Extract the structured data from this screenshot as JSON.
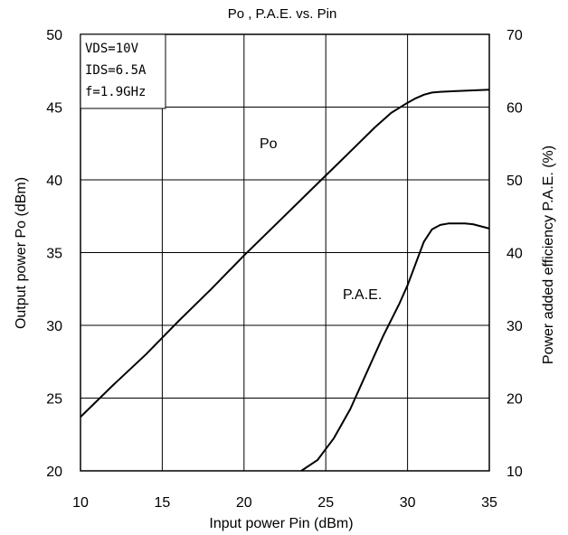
{
  "chart_data": {
    "type": "line",
    "title": "Po , P.A.E.  vs. Pin",
    "xlabel": "Input power Pin (dBm)",
    "ylabel_left": "Output power Po (dBm)",
    "ylabel_right": "Power added efficiency  P.A.E. (%)",
    "xlim": [
      10,
      35
    ],
    "ylim_left": [
      20,
      50
    ],
    "ylim_right": [
      10,
      70
    ],
    "x_ticks": [
      "10",
      "15",
      "20",
      "25",
      "30",
      "35"
    ],
    "y_ticks_left": [
      "20",
      "25",
      "30",
      "35",
      "40",
      "45",
      "50"
    ],
    "y_ticks_right": [
      "10",
      "20",
      "30",
      "40",
      "50",
      "60",
      "70"
    ],
    "grid": true,
    "conditions": [
      "VDS=10V",
      "IDS=6.5A",
      "f=1.9GHz"
    ],
    "series": [
      {
        "name": "Po",
        "axis": "left",
        "color": "#000000",
        "x": [
          10,
          12,
          14,
          16,
          18,
          20,
          22,
          24,
          26,
          28,
          29,
          30,
          30.5,
          31,
          31.5,
          32,
          33,
          34,
          35
        ],
        "y": [
          23.7,
          25.9,
          28.0,
          30.3,
          32.5,
          34.8,
          37.0,
          39.2,
          41.4,
          43.6,
          44.6,
          45.3,
          45.6,
          45.85,
          46.0,
          46.05,
          46.1,
          46.15,
          46.2
        ]
      },
      {
        "name": "P.A.E.",
        "axis": "right",
        "color": "#000000",
        "x": [
          23.5,
          24.5,
          25.5,
          26.5,
          27.5,
          28.5,
          29.5,
          30.0,
          30.5,
          31.0,
          31.5,
          32.0,
          32.5,
          33.0,
          33.5,
          34.0,
          34.5,
          35.0
        ],
        "y": [
          10.0,
          11.5,
          14.5,
          18.5,
          23.5,
          28.5,
          33.0,
          35.5,
          38.5,
          41.5,
          43.2,
          43.8,
          44.0,
          44.0,
          44.0,
          43.9,
          43.6,
          43.3
        ]
      }
    ]
  }
}
